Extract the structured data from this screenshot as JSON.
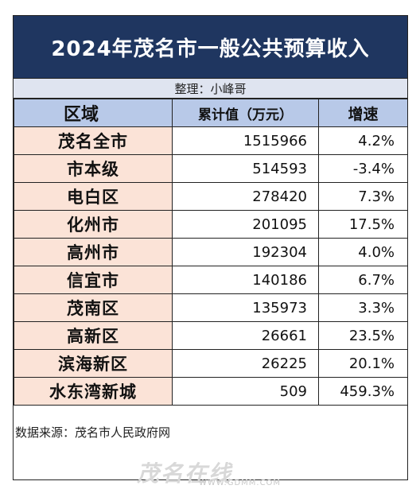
{
  "title": "2024年茂名市一般公共预算收入",
  "credit": "整理：小峰哥",
  "headers": {
    "region": "区域",
    "value": "累计值（万元）",
    "growth": "增速"
  },
  "rows": [
    {
      "name": "茂名全市",
      "value": "1515966",
      "growth": "4.2%"
    },
    {
      "name": "市本级",
      "value": "514593",
      "growth": "-3.4%"
    },
    {
      "name": "电白区",
      "value": "278420",
      "growth": "7.3%"
    },
    {
      "name": "化州市",
      "value": "201095",
      "growth": "17.5%"
    },
    {
      "name": "高州市",
      "value": "192304",
      "growth": "4.0%"
    },
    {
      "name": "信宜市",
      "value": "140186",
      "growth": "6.7%"
    },
    {
      "name": "茂南区",
      "value": "135973",
      "growth": "3.3%"
    },
    {
      "name": "高新区",
      "value": "26661",
      "growth": "23.5%"
    },
    {
      "name": "滨海新区",
      "value": "26225",
      "growth": "20.1%"
    },
    {
      "name": "水东湾新城",
      "value": "509",
      "growth": "459.3%"
    }
  ],
  "source": "数据来源：茂名市人民政府网",
  "watermark": {
    "logo": "茂名在线",
    "url": "WWW.GDMM.COM"
  },
  "colors": {
    "title_bg": "#1f3660",
    "header_bg": "#b8c9e8",
    "name_bg": "#fbe3d7",
    "credit_bg": "#dfe4f0"
  }
}
